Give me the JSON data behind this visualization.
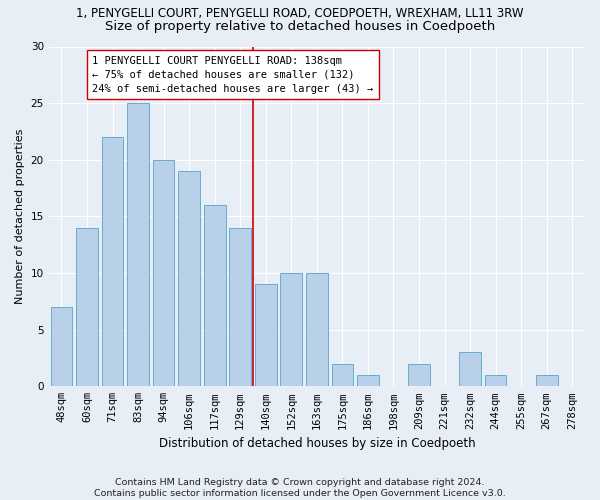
{
  "title1": "1, PENYGELLI COURT, PENYGELLI ROAD, COEDPOETH, WREXHAM, LL11 3RW",
  "title2": "Size of property relative to detached houses in Coedpoeth",
  "xlabel": "Distribution of detached houses by size in Coedpoeth",
  "ylabel": "Number of detached properties",
  "categories": [
    "48sqm",
    "60sqm",
    "71sqm",
    "83sqm",
    "94sqm",
    "106sqm",
    "117sqm",
    "129sqm",
    "140sqm",
    "152sqm",
    "163sqm",
    "175sqm",
    "186sqm",
    "198sqm",
    "209sqm",
    "221sqm",
    "232sqm",
    "244sqm",
    "255sqm",
    "267sqm",
    "278sqm"
  ],
  "values": [
    7,
    14,
    22,
    25,
    20,
    19,
    16,
    14,
    9,
    10,
    10,
    2,
    1,
    0,
    2,
    0,
    3,
    1,
    0,
    1,
    0
  ],
  "bar_color": "#b8d0e8",
  "bar_edge_color": "#6aaad4",
  "vline_color": "#cc0000",
  "annotation_box_edge_color": "#cc0000",
  "property_line_label": "1 PENYGELLI COURT PENYGELLI ROAD: 138sqm",
  "stat_line1": "← 75% of detached houses are smaller (132)",
  "stat_line2": "24% of semi-detached houses are larger (43) →",
  "ylim": [
    0,
    30
  ],
  "yticks": [
    0,
    5,
    10,
    15,
    20,
    25,
    30
  ],
  "footer1": "Contains HM Land Registry data © Crown copyright and database right 2024.",
  "footer2": "Contains public sector information licensed under the Open Government Licence v3.0.",
  "bg_color": "#e8eef5",
  "plot_bg_color": "#e8eef5",
  "grid_color": "#ffffff",
  "title1_fontsize": 8.5,
  "title2_fontsize": 9.5,
  "xlabel_fontsize": 8.5,
  "ylabel_fontsize": 8,
  "tick_fontsize": 7.5,
  "footer_fontsize": 6.8,
  "annot_fontsize": 7.5,
  "vline_bar_index": 7.5
}
